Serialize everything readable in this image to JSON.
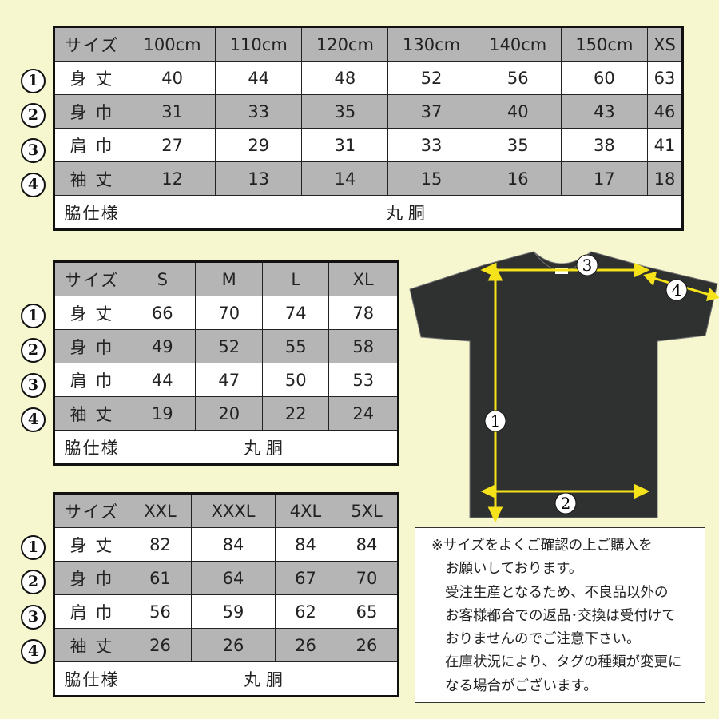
{
  "tables": [
    {
      "header": [
        "サイズ",
        "100cm",
        "110cm",
        "120cm",
        "130cm",
        "140cm",
        "150cm",
        "XS"
      ],
      "rows": [
        {
          "marker": "1",
          "label": "身 丈",
          "values": [
            "40",
            "44",
            "48",
            "52",
            "56",
            "60",
            "63"
          ]
        },
        {
          "marker": "2",
          "label": "身 巾",
          "values": [
            "31",
            "33",
            "35",
            "37",
            "40",
            "43",
            "46"
          ]
        },
        {
          "marker": "3",
          "label": "肩 巾",
          "values": [
            "27",
            "29",
            "31",
            "33",
            "35",
            "38",
            "41"
          ]
        },
        {
          "marker": "4",
          "label": "袖 丈",
          "values": [
            "12",
            "13",
            "14",
            "15",
            "16",
            "17",
            "18"
          ]
        }
      ],
      "footer": {
        "label": "脇仕様",
        "value": "丸 胴"
      }
    },
    {
      "header": [
        "サイズ",
        "S",
        "M",
        "L",
        "XL"
      ],
      "rows": [
        {
          "marker": "1",
          "label": "身 丈",
          "values": [
            "66",
            "70",
            "74",
            "78"
          ]
        },
        {
          "marker": "2",
          "label": "身 巾",
          "values": [
            "49",
            "52",
            "55",
            "58"
          ]
        },
        {
          "marker": "3",
          "label": "肩 巾",
          "values": [
            "44",
            "47",
            "50",
            "53"
          ]
        },
        {
          "marker": "4",
          "label": "袖 丈",
          "values": [
            "19",
            "20",
            "22",
            "24"
          ]
        }
      ],
      "footer": {
        "label": "脇仕様",
        "value": "丸 胴"
      }
    },
    {
      "header": [
        "サイズ",
        "XXL",
        "XXXL",
        "4XL",
        "5XL"
      ],
      "rows": [
        {
          "marker": "1",
          "label": "身 丈",
          "values": [
            "82",
            "84",
            "84",
            "84"
          ]
        },
        {
          "marker": "2",
          "label": "身 巾",
          "values": [
            "61",
            "64",
            "67",
            "70"
          ]
        },
        {
          "marker": "3",
          "label": "肩 巾",
          "values": [
            "56",
            "59",
            "62",
            "65"
          ]
        },
        {
          "marker": "4",
          "label": "袖 丈",
          "values": [
            "26",
            "26",
            "26",
            "26"
          ]
        }
      ],
      "footer": {
        "label": "脇仕様",
        "value": "丸 胴"
      }
    }
  ],
  "diagram": {
    "markers": [
      "1",
      "2",
      "3",
      "4"
    ],
    "shirt_color": "#2f3130",
    "arrow_color": "#f5e21a"
  },
  "note": {
    "lines": [
      "※サイズをよくご確認の上ご購入を",
      "お願いしております。",
      "受注生産となるため、不良品以外の",
      "お客様都合での返品･交換は受付けて",
      "おりませんのでご注意下さい。",
      "在庫状況により、タグの種類が変更に",
      "なる場合がございます。"
    ]
  },
  "colors": {
    "background": "#f6f6cf",
    "header_gray": "#b5b5b5"
  }
}
